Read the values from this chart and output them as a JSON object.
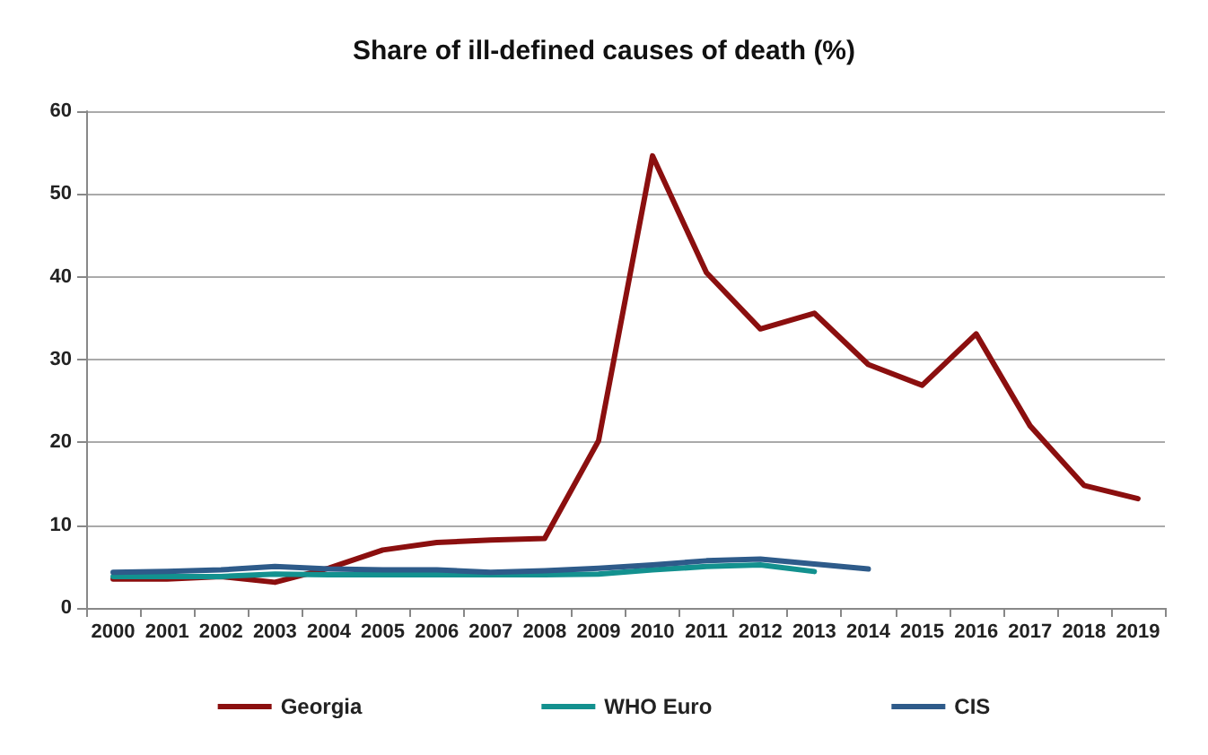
{
  "chart_data": {
    "type": "line",
    "title": "Share of ill-defined causes of death (%)",
    "categories": [
      "2000",
      "2001",
      "2002",
      "2003",
      "2004",
      "2005",
      "2006",
      "2007",
      "2008",
      "2009",
      "2010",
      "2011",
      "2012",
      "2013",
      "2014",
      "2015",
      "2016",
      "2017",
      "2018",
      "2019"
    ],
    "series": [
      {
        "name": "Georgia",
        "color": "#8b0f0f",
        "values": [
          3.5,
          3.5,
          3.8,
          3.1,
          4.8,
          7,
          7.9,
          8.2,
          8.4,
          20.2,
          54.6,
          40.5,
          33.7,
          35.6,
          29.4,
          26.9,
          33.1,
          22,
          14.8,
          13.2
        ]
      },
      {
        "name": "WHO Euro",
        "color": "#13918f",
        "values": [
          3.8,
          3.8,
          3.8,
          4.1,
          4.0,
          4.0,
          4.0,
          4.0,
          4.0,
          4.1,
          4.6,
          5.0,
          5.2,
          4.4,
          null,
          null,
          null,
          null,
          null,
          null
        ]
      },
      {
        "name": "CIS",
        "color": "#2e5b8a",
        "values": [
          4.3,
          4.4,
          4.6,
          5.0,
          4.7,
          4.6,
          4.6,
          4.3,
          4.5,
          4.8,
          5.2,
          5.7,
          5.9,
          5.3,
          4.7,
          null,
          null,
          null,
          null,
          null
        ]
      }
    ],
    "ylim": [
      0,
      60
    ],
    "yticks": [
      0,
      10,
      20,
      30,
      40,
      50,
      60
    ],
    "grid": "y",
    "legend": "bottom",
    "marker": "none",
    "line_style": "solid"
  }
}
